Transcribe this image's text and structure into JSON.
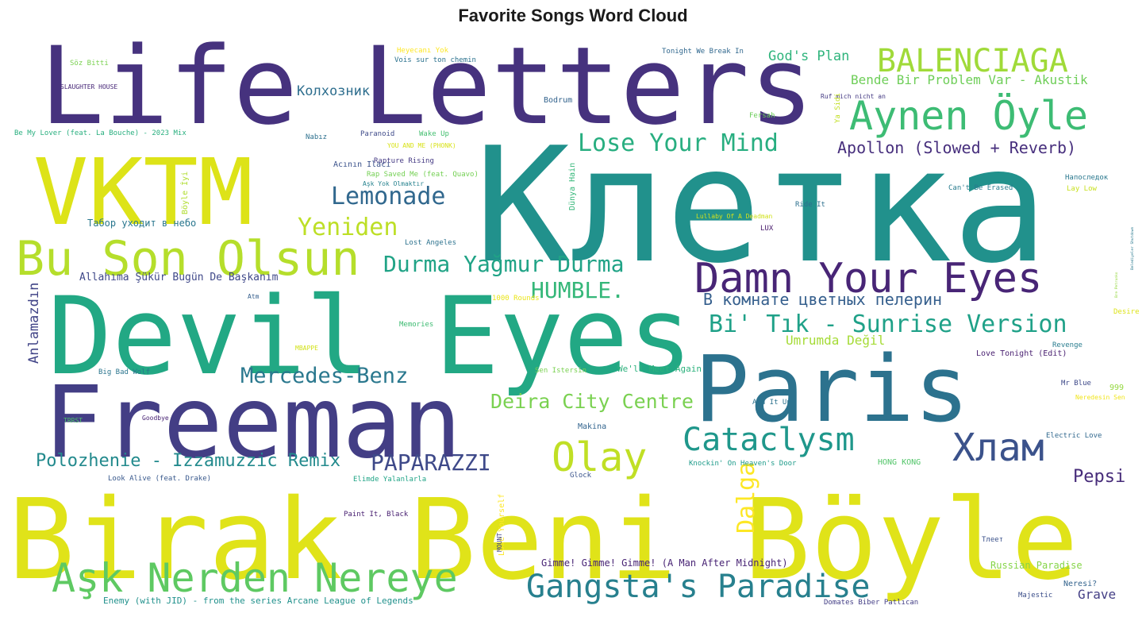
{
  "title": "Favorite Songs Word Cloud",
  "words": [
    {
      "text": "Клетка",
      "color": "#21918c"
    },
    {
      "text": "Birak Beni Böyle",
      "color": "#e0e319"
    },
    {
      "text": "Life Letters",
      "color": "#46327e"
    },
    {
      "text": "Devil Eyes",
      "color": "#22a884"
    },
    {
      "text": "Freeman",
      "color": "#433e85"
    },
    {
      "text": "Paris",
      "color": "#2c728e"
    },
    {
      "text": "VKTM",
      "color": "#dde318"
    },
    {
      "text": "Bu Son Olsun",
      "color": "#b5de2b"
    },
    {
      "text": "Aşk Nerden Nereye",
      "color": "#5ec962"
    },
    {
      "text": "Damn Your Eyes",
      "color": "#482576"
    },
    {
      "text": "Aynen Öyle",
      "color": "#3dbc74"
    },
    {
      "text": "BALENCIAGA",
      "color": "#a0da39"
    },
    {
      "text": "Gangsta's Paradise",
      "color": "#27808e"
    },
    {
      "text": "Хлам",
      "color": "#3b528b"
    },
    {
      "text": "Olay",
      "color": "#c0df25"
    },
    {
      "text": "Cataclysm",
      "color": "#1f978b"
    },
    {
      "text": "Dalga",
      "color": "#fde725"
    },
    {
      "text": "Lose Your Mind",
      "color": "#28ae80"
    },
    {
      "text": "Lemonade",
      "color": "#31688e"
    },
    {
      "text": "Yeniden",
      "color": "#bddf26"
    },
    {
      "text": "Durma Yağmur Durma",
      "color": "#20a386"
    },
    {
      "text": "Bi' Tık - Sunrise Version",
      "color": "#1fa188"
    },
    {
      "text": "Mercedes-Benz",
      "color": "#2a788e"
    },
    {
      "text": "Deira City Centre",
      "color": "#7ad151"
    },
    {
      "text": "PAPARAZZI",
      "color": "#3e4989"
    },
    {
      "text": "Polozhenie - Izzamuzzic Remix",
      "color": "#238a8d"
    },
    {
      "text": "HUMBLE.",
      "color": "#35b779"
    },
    {
      "text": "В комнате цветных пелерин",
      "color": "#355f8d"
    },
    {
      "text": "Apollon (Slowed + Reverb)",
      "color": "#472f7d"
    },
    {
      "text": "Bende Bir Problem Var - Akustik",
      "color": "#6ece58"
    },
    {
      "text": "God's Plan",
      "color": "#2fb47c"
    },
    {
      "text": "Колхозник",
      "color": "#2e6e8e"
    },
    {
      "text": "Pepsi",
      "color": "#472c7a"
    },
    {
      "text": "Grave",
      "color": "#433e85"
    },
    {
      "text": "Umrumda Değil",
      "color": "#a5db36"
    },
    {
      "text": "Bre Petrunko",
      "color": "#95d840"
    },
    {
      "text": "Belediyeler Shutdown",
      "color": "#29798e"
    },
    {
      "text": "Lose Yourself",
      "color": "#fde725"
    },
    {
      "text": "Anlamazdın",
      "color": "#414487"
    },
    {
      "text": "Allahıma Şükür Bugün De Başkanım",
      "color": "#3f4889"
    },
    {
      "text": "Табор уходит в небо",
      "color": "#2a778e"
    },
    {
      "text": "Gimme! Gimme! Gimme! (A Man After Midnight)",
      "color": "#482475"
    },
    {
      "text": "Enemy (with JID) - from the series Arcane League of Legends",
      "color": "#21918c"
    },
    {
      "text": "Russian Paradise",
      "color": "#86d549"
    },
    {
      "text": "Love Tonight (Edit)",
      "color": "#481f70"
    },
    {
      "text": "Lost Angeles",
      "color": "#2c728e"
    },
    {
      "text": "Rapture Rising",
      "color": "#443983"
    },
    {
      "text": "Rap Saved Me (feat. Quavo)",
      "color": "#75d054"
    },
    {
      "text": "Acının Ilacı",
      "color": "#3b528b"
    },
    {
      "text": "Aşk Yok Olmaktır",
      "color": "#26828e"
    },
    {
      "text": "YOU AND ME (PHONK)",
      "color": "#d8e219"
    },
    {
      "text": "Paranoid",
      "color": "#3e4a89"
    },
    {
      "text": "Wake Up",
      "color": "#44bf70"
    },
    {
      "text": "Nabız",
      "color": "#2d708e"
    },
    {
      "text": "Be My Lover (feat. La Bouche) - 2023 Mix",
      "color": "#29af7f"
    },
    {
      "text": "SLAUGHTER HOUSE",
      "color": "#482878"
    },
    {
      "text": "Söz Bitti",
      "color": "#7ad151"
    },
    {
      "text": "Heyecanı Yok",
      "color": "#fde725"
    },
    {
      "text": "Vois sur ton chemin",
      "color": "#2c728e"
    },
    {
      "text": "Tonight We Break In",
      "color": "#31688e"
    },
    {
      "text": "Ruf mich nicht an",
      "color": "#443a83"
    },
    {
      "text": "Bodrum",
      "color": "#33638d"
    },
    {
      "text": "Fersah",
      "color": "#6ccd5a"
    },
    {
      "text": "Ya Sidi",
      "color": "#c2df23"
    },
    {
      "text": "Dünya Hain",
      "color": "#35b779"
    },
    {
      "text": "Böyle İyi",
      "color": "#b0dd2f"
    },
    {
      "text": "Can't Be Erased",
      "color": "#287c8e"
    },
    {
      "text": "Напоследок",
      "color": "#2a788e"
    },
    {
      "text": "Lay Low",
      "color": "#c8e020"
    },
    {
      "text": "Ride It",
      "color": "#2d708e"
    },
    {
      "text": "Lullaby Of A Deadman",
      "color": "#d0e11c"
    },
    {
      "text": "LUX",
      "color": "#481a6c"
    },
    {
      "text": "Atm",
      "color": "#355f8d"
    },
    {
      "text": "1000 Rounds",
      "color": "#eae51a"
    },
    {
      "text": "Memories",
      "color": "#3fbc73"
    },
    {
      "text": "MBAPPE",
      "color": "#d2e21b"
    },
    {
      "text": "Big Bad Wolf",
      "color": "#2b758e"
    },
    {
      "text": "Sen Istersin",
      "color": "#7ad151"
    },
    {
      "text": "We'll Meet Again",
      "color": "#2db27d"
    },
    {
      "text": "Revenge",
      "color": "#287c8e"
    },
    {
      "text": "Desire",
      "color": "#dde318"
    },
    {
      "text": "999",
      "color": "#95d840"
    },
    {
      "text": "Mr Blue",
      "color": "#3e4989"
    },
    {
      "text": "Neredesin Sen",
      "color": "#f1e51d"
    },
    {
      "text": "Add It Up",
      "color": "#2c738e"
    },
    {
      "text": "TRRST",
      "color": "#50c46a"
    },
    {
      "text": "Goodbye",
      "color": "#482374"
    },
    {
      "text": "Makina",
      "color": "#32648e"
    },
    {
      "text": "Electric Love",
      "color": "#31688e"
    },
    {
      "text": "Look Alive (feat. Drake)",
      "color": "#38588c"
    },
    {
      "text": "Elimde Yalanlarla",
      "color": "#20a486"
    },
    {
      "text": "Glock",
      "color": "#3a548c"
    },
    {
      "text": "Knockin' On Heaven's Door",
      "color": "#1e9b8a"
    },
    {
      "text": "HONG KONG",
      "color": "#52c569"
    },
    {
      "text": "Paint It, Black",
      "color": "#482071"
    },
    {
      "text": "MOUNT",
      "color": "#414487"
    },
    {
      "text": "Тлеет",
      "color": "#3b528b"
    },
    {
      "text": "Neresi?",
      "color": "#33638d"
    },
    {
      "text": "Majestic",
      "color": "#3c4f8a"
    },
    {
      "text": "Domates Biber Patlıcan",
      "color": "#433e85"
    }
  ]
}
